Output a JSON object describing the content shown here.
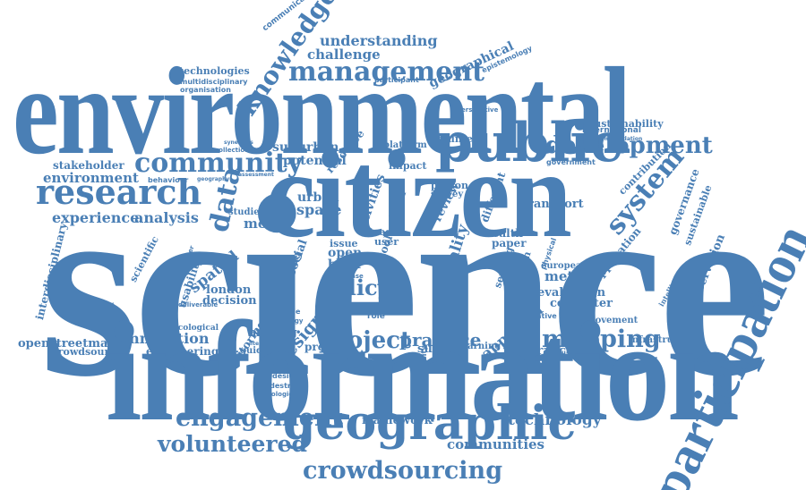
{
  "accent_color": "#4a7fb5",
  "words": {
    "science": "science",
    "citizen": "citizen",
    "information": "information",
    "environmental": "environmental",
    "participation": "participation",
    "geographic": "geographic",
    "public": "public",
    "research": "research",
    "community": "community",
    "management": "management",
    "development": "development",
    "knowledge": "knowledge",
    "engagement": "engagement",
    "volunteered": "volunteered",
    "crowdsourcing": "crowdsourcing",
    "project": "project",
    "mapping": "mapping",
    "system": "system",
    "data": "data",
    "policy": "policy",
    "practice": "practice",
    "approach": "approach",
    "technology": "technology",
    "framework": "framework",
    "communities": "communities",
    "understanding": "understanding",
    "challenge": "challenge",
    "geographical": "geographical",
    "technologies": "technologies",
    "multidisciplinary": "multidisciplinary",
    "organisation": "organisation",
    "communication": "communication",
    "participant": "participant",
    "epistemology": "epistemology",
    "international": "international",
    "sustainability": "sustainability",
    "stakeholder": "stakeholder",
    "environment": "environment",
    "behaviour": "behaviour",
    "experience": "experience",
    "analysis": "analysis",
    "interdisciplinary": "interdisciplinary",
    "scientific": "scientific",
    "spatial": "spatial",
    "london": "london",
    "decision": "decision",
    "usability": "usability",
    "methodology": "methodology",
    "openstreetmap": "openstreetmap",
    "crowdsourced": "crowdsourced",
    "innovation": "innovation",
    "engineering": "engineering",
    "ecological": "ecological",
    "monitoring": "monitoring",
    "guideline": "guideline",
    "making": "making",
    "design": "design",
    "present": "present",
    "suburban": "suburban",
    "potential": "potential",
    "urban": "urban",
    "space": "space",
    "model": "model",
    "studies": "studies",
    "planning": "planning",
    "social": "social",
    "mobile": "mobile",
    "ecology": "ecology",
    "resource": "resource",
    "activities": "activities",
    "local": "local",
    "tool": "tool",
    "issue": "issue",
    "open": "open",
    "brief": "brief",
    "study": "study",
    "role": "role",
    "volunteer": "volunteer",
    "platform": "platform",
    "impact": "impact",
    "person": "person",
    "survey": "survey",
    "review": "review",
    "different": "different",
    "quality": "quality",
    "street": "street",
    "user": "user",
    "collection": "collection",
    "government": "government",
    "governance": "governance",
    "sustainable": "sustainable",
    "conservation": "conservation",
    "intelligence": "intelligence",
    "contribution": "contribution",
    "transport": "transport",
    "health": "health",
    "paper": "paper",
    "sensing": "sensing",
    "interaction": "interaction",
    "method": "method",
    "evaluation": "evaluation",
    "computer": "computer",
    "european": "european",
    "application": "application",
    "qualitative": "qualitative",
    "movement": "movement",
    "infrastructure": "infrastructure",
    "support": "support",
    "learning": "learning",
    "severance": "severance",
    "collaborative": "collaborative",
    "biodesign": "biodesign",
    "pedestrian": "pedestrian",
    "typologies": "typologies",
    "biodiversity": "biodiversity",
    "future": "future",
    "centre": "centre",
    "physical": "physical",
    "perspective": "perspective",
    "recommendation": "recommendation",
    "literature": "literature",
    "case": "case",
    "term": "term",
    "deliverable": "deliverable",
    "practitioner": "practitioner",
    "assessment": "assessment",
    "synergies": "synergies",
    "geography": "geography"
  }
}
